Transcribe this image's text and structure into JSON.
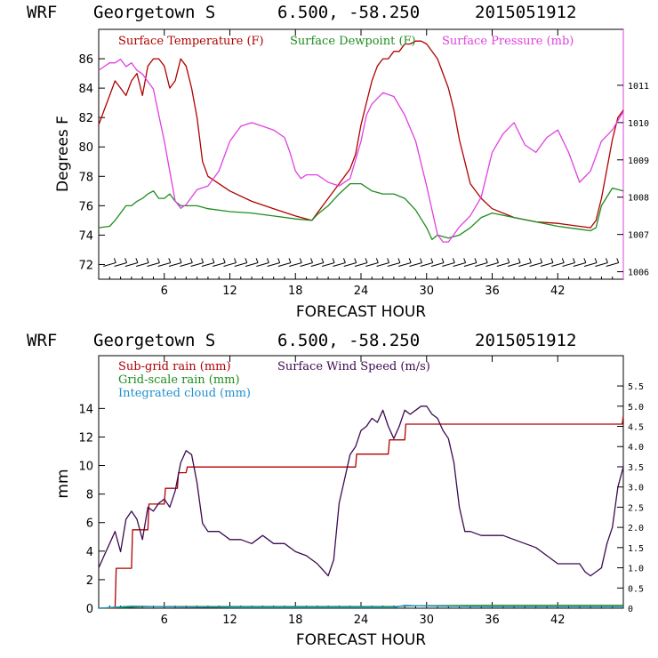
{
  "header": {
    "model": "WRF",
    "location": "Georgetown S",
    "coords": "6.500, -58.250",
    "init_time": "2015051912"
  },
  "colors": {
    "temperature": "#b00000",
    "dewpoint": "#1e8c1e",
    "pressure": "#e040e0",
    "subgrid_rain": "#b00000",
    "gridscale_rain": "#1e8c1e",
    "integrated_cloud": "#1e90d0",
    "wind_speed": "#3c0a50",
    "wind_barbs": "#000000"
  },
  "chart_data": [
    {
      "type": "line",
      "title": "",
      "xlabel": "FORECAST HOUR",
      "ylabel": "Degrees F",
      "xlim": [
        0,
        48
      ],
      "ylim": [
        71,
        88
      ],
      "y2lim": [
        1005.8,
        1012.5
      ],
      "xticks": [
        "6",
        "12",
        "18",
        "24",
        "30",
        "36",
        "42"
      ],
      "yticks": [
        "72",
        "74",
        "76",
        "78",
        "80",
        "82",
        "84",
        "86"
      ],
      "y2ticks": [
        "1006",
        "1007",
        "1008",
        "1009",
        "1010",
        "1011"
      ],
      "legend": "top-left",
      "series": [
        {
          "name": "Surface Temperature (F)",
          "axis": "left",
          "x": [
            0,
            0.5,
            1,
            1.5,
            2,
            2.5,
            3,
            3.5,
            4,
            4.5,
            5,
            5.5,
            6,
            6.5,
            7,
            7.5,
            8,
            8.5,
            9,
            9.5,
            10,
            11,
            12,
            14,
            16,
            18,
            19.5,
            20,
            21,
            22,
            23,
            23.5,
            24,
            24.5,
            25,
            25.5,
            26,
            26.5,
            27,
            27.5,
            28,
            28.5,
            29,
            29.5,
            30,
            30.5,
            31,
            31.5,
            32,
            32.5,
            33,
            33.5,
            34,
            35,
            36,
            38,
            40,
            42,
            44,
            45,
            45.5,
            46,
            46.5,
            47,
            47.5,
            48
          ],
          "y": [
            81.5,
            82.5,
            83.5,
            84.5,
            84,
            83.5,
            84.5,
            85,
            83.5,
            85.5,
            86,
            86,
            85.5,
            84,
            84.5,
            86,
            85.5,
            84,
            82,
            79,
            78,
            77.5,
            77,
            76.3,
            75.8,
            75.3,
            75,
            75.5,
            76.5,
            77.5,
            78.5,
            79.5,
            81.5,
            83,
            84.5,
            85.5,
            86,
            86,
            86.5,
            86.5,
            87,
            87,
            87.2,
            87.2,
            87,
            86.5,
            86,
            85,
            84,
            82.5,
            80.5,
            79,
            77.5,
            76.5,
            75.8,
            75.2,
            74.9,
            74.8,
            74.6,
            74.5,
            75,
            76.5,
            78.5,
            80.5,
            82,
            82.5
          ]
        },
        {
          "name": "Surface Dewpoint (F)",
          "axis": "left",
          "x": [
            0,
            1,
            1.5,
            2,
            2.5,
            3,
            3.5,
            4,
            4.5,
            5,
            5.5,
            6,
            6.5,
            7,
            7.5,
            8,
            9,
            10,
            12,
            14,
            16,
            18,
            19.5,
            20,
            21,
            22,
            23,
            24,
            25,
            26,
            27,
            28,
            29,
            30,
            30.5,
            31,
            32,
            33,
            34,
            35,
            36,
            38,
            40,
            42,
            44,
            45,
            45.5,
            46,
            47,
            48
          ],
          "y": [
            74.5,
            74.6,
            75,
            75.5,
            76,
            76,
            76.3,
            76.5,
            76.8,
            77,
            76.5,
            76.5,
            76.8,
            76.3,
            76,
            76,
            76,
            75.8,
            75.6,
            75.5,
            75.3,
            75.1,
            75,
            75.4,
            76,
            76.8,
            77.5,
            77.5,
            77,
            76.8,
            76.8,
            76.5,
            75.7,
            74.5,
            73.7,
            74,
            73.8,
            74,
            74.5,
            75.2,
            75.5,
            75.2,
            74.9,
            74.6,
            74.4,
            74.3,
            74.5,
            76,
            77.2,
            77
          ]
        },
        {
          "name": "Surface Pressure (mb)",
          "axis": "right",
          "x": [
            0,
            0.5,
            1,
            1.5,
            2,
            2.5,
            3,
            3.5,
            4,
            4.5,
            5,
            5.5,
            6,
            6.5,
            7,
            7.5,
            8,
            9,
            10,
            11,
            12,
            13,
            14,
            15,
            16,
            17,
            17.5,
            18,
            18.5,
            19,
            20,
            21,
            22,
            23,
            24,
            24.5,
            25,
            26,
            27,
            28,
            29,
            30,
            31,
            31.5,
            32,
            33,
            34,
            35,
            36,
            37,
            38,
            39,
            40,
            41,
            42,
            43,
            44,
            45,
            46,
            47,
            48
          ],
          "y": [
            1011.4,
            1011.5,
            1011.6,
            1011.6,
            1011.7,
            1011.5,
            1011.6,
            1011.4,
            1011.3,
            1011.1,
            1010.9,
            1010.2,
            1009.5,
            1008.7,
            1007.9,
            1007.7,
            1007.8,
            1008.2,
            1008.3,
            1008.7,
            1009.5,
            1009.9,
            1010,
            1009.9,
            1009.8,
            1009.6,
            1009.2,
            1008.7,
            1008.5,
            1008.6,
            1008.6,
            1008.4,
            1008.3,
            1008.5,
            1009.5,
            1010.2,
            1010.5,
            1010.8,
            1010.7,
            1010.2,
            1009.5,
            1008.3,
            1007,
            1006.8,
            1006.8,
            1007.2,
            1007.5,
            1008,
            1009.2,
            1009.7,
            1010,
            1009.4,
            1009.2,
            1009.6,
            1009.8,
            1009.2,
            1008.4,
            1008.7,
            1009.5,
            1009.8,
            1010.3
          ]
        }
      ]
    },
    {
      "type": "line",
      "title": "",
      "xlabel": "FORECAST HOUR",
      "ylabel": "mm",
      "xlim": [
        0,
        48
      ],
      "ylim": [
        0,
        17.7
      ],
      "y2lim": [
        0,
        6.25
      ],
      "xticks": [
        "6",
        "12",
        "18",
        "24",
        "30",
        "36",
        "42"
      ],
      "yticks": [
        "0",
        "2",
        "4",
        "6",
        "8",
        "10",
        "12",
        "14"
      ],
      "y2ticks": [
        "0",
        "0.5",
        "1.0",
        "1.5",
        "2.0",
        "2.5",
        "3.0",
        "3.5",
        "4.0",
        "4.5",
        "5.0",
        "5.5"
      ],
      "legend": "top-left",
      "series": [
        {
          "name": "Sub-grid rain (mm)",
          "axis": "left",
          "x": [
            0,
            1.5,
            1.6,
            3,
            3.1,
            4.5,
            4.6,
            6,
            6.1,
            7.2,
            7.3,
            8,
            8.1,
            23.5,
            23.6,
            26.5,
            26.6,
            28,
            28.1,
            47.9,
            48
          ],
          "y": [
            0,
            0,
            2.8,
            2.8,
            5.5,
            5.5,
            7.3,
            7.3,
            8.4,
            8.4,
            9.5,
            9.5,
            9.9,
            9.9,
            10.8,
            10.8,
            11.8,
            11.8,
            12.9,
            12.9,
            13.5
          ]
        },
        {
          "name": "Grid-scale rain (mm)",
          "axis": "left",
          "x": [
            0,
            2,
            4,
            6,
            27,
            28,
            30,
            36,
            42,
            48
          ],
          "y": [
            0,
            0.05,
            0.1,
            0.12,
            0.12,
            0.15,
            0.18,
            0.2,
            0.2,
            0.2
          ]
        },
        {
          "name": "Integrated cloud (mm)",
          "axis": "left",
          "x": [
            0,
            2,
            3,
            6,
            12,
            24,
            27,
            28,
            30,
            36,
            42,
            48
          ],
          "y": [
            0,
            0.1,
            0.15,
            0.1,
            0.05,
            0.05,
            0.05,
            0.2,
            0.15,
            0.1,
            0.1,
            0.1
          ]
        },
        {
          "name": "Surface Wind Speed (m/s)",
          "axis": "right",
          "x": [
            0,
            0.5,
            1,
            1.5,
            2,
            2.5,
            3,
            3.5,
            4,
            4.5,
            5,
            5.5,
            6,
            6.5,
            7,
            7.5,
            8,
            8.5,
            9,
            9.5,
            10,
            11,
            12,
            13,
            14,
            15,
            16,
            17,
            18,
            19,
            20,
            21,
            21.5,
            22,
            22.5,
            23,
            23.5,
            24,
            24.5,
            25,
            25.5,
            26,
            26.5,
            27,
            27.5,
            28,
            28.5,
            29,
            29.5,
            30,
            30.5,
            31,
            31.5,
            32,
            32.5,
            33,
            33.5,
            34,
            35,
            36,
            37,
            38,
            39,
            40,
            41,
            42,
            43,
            44,
            44.5,
            45,
            45.5,
            46,
            46.5,
            47,
            47.5,
            48
          ],
          "y": [
            1.0,
            1.3,
            1.6,
            1.9,
            1.4,
            2.2,
            2.4,
            2.2,
            1.7,
            2.5,
            2.4,
            2.6,
            2.7,
            2.5,
            2.9,
            3.6,
            3.9,
            3.8,
            3.1,
            2.1,
            1.9,
            1.9,
            1.7,
            1.7,
            1.6,
            1.8,
            1.6,
            1.6,
            1.4,
            1.3,
            1.1,
            0.8,
            1.2,
            2.6,
            3.2,
            3.8,
            4.0,
            4.4,
            4.5,
            4.7,
            4.6,
            4.9,
            4.5,
            4.2,
            4.5,
            4.9,
            4.8,
            4.9,
            5.0,
            5.0,
            4.8,
            4.7,
            4.4,
            4.2,
            3.6,
            2.5,
            1.9,
            1.9,
            1.8,
            1.8,
            1.8,
            1.7,
            1.6,
            1.5,
            1.3,
            1.1,
            1.1,
            1.1,
            0.9,
            0.8,
            0.9,
            1.0,
            1.6,
            2.0,
            3.0,
            3.5
          ]
        }
      ]
    }
  ]
}
